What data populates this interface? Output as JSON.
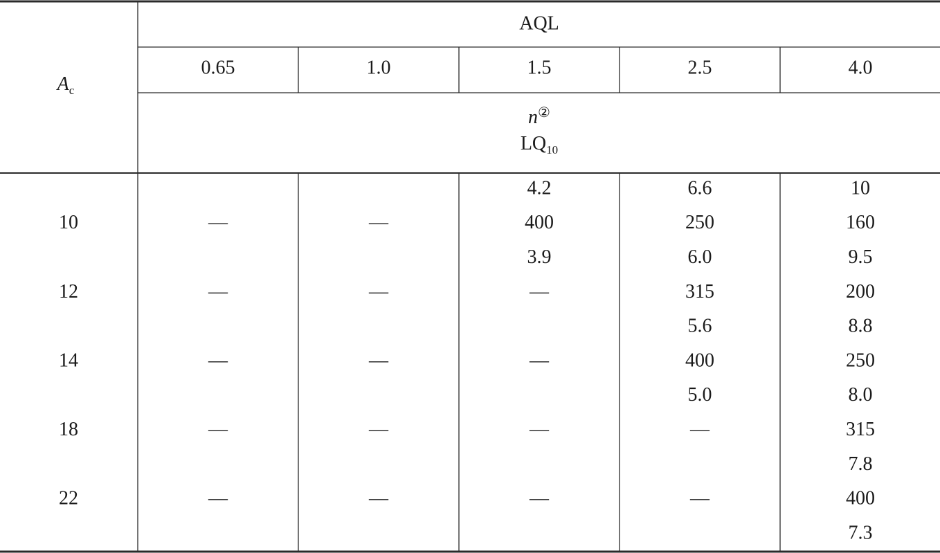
{
  "header": {
    "corner": {
      "symbol": "A",
      "subscript": "c"
    },
    "aql_label": "AQL",
    "aql_values": [
      "0.65",
      "1.0",
      "1.5",
      "2.5",
      "4.0"
    ],
    "n_label": {
      "symbol": "n",
      "superscript": "②"
    },
    "lq_label": {
      "text": "LQ",
      "subscript": "10"
    }
  },
  "table": {
    "rows": [
      [
        null,
        null,
        null,
        "4.2",
        "6.6",
        "10"
      ],
      [
        "10",
        "—",
        "—",
        "400",
        "250",
        "160"
      ],
      [
        null,
        null,
        null,
        "3.9",
        "6.0",
        "9.5"
      ],
      [
        "12",
        "—",
        "—",
        "—",
        "315",
        "200"
      ],
      [
        null,
        null,
        null,
        null,
        "5.6",
        "8.8"
      ],
      [
        "14",
        "—",
        "—",
        "—",
        "400",
        "250"
      ],
      [
        null,
        null,
        null,
        null,
        "5.0",
        "8.0"
      ],
      [
        "18",
        "—",
        "—",
        "—",
        "—",
        "315"
      ],
      [
        null,
        null,
        null,
        null,
        null,
        "7.8"
      ],
      [
        "22",
        "—",
        "—",
        "—",
        "—",
        "400"
      ],
      [
        null,
        null,
        null,
        null,
        null,
        "7.3"
      ]
    ]
  }
}
